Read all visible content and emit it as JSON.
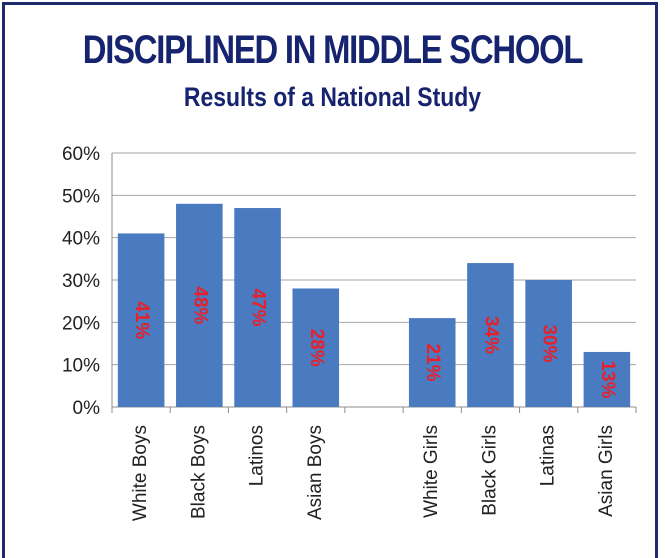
{
  "header": {
    "title": "DISCIPLINED IN MIDDLE SCHOOL",
    "subtitle": "Results of a National Study"
  },
  "colors": {
    "bar": "#4a7ac0",
    "title": "#16236f",
    "data_label": "#e8202a",
    "grid": "#a6a6a6"
  },
  "chart_data": {
    "type": "bar",
    "title": "DISCIPLINED IN MIDDLE SCHOOL",
    "subtitle": "Results of a National Study",
    "categories": [
      "White Boys",
      "Black Boys",
      "Latinos",
      "Asian Boys",
      "",
      "White Girls",
      "Black Girls",
      "Latinas",
      "Asian Girls"
    ],
    "values": [
      41,
      48,
      47,
      28,
      null,
      21,
      34,
      30,
      13
    ],
    "data_labels": [
      "41%",
      "48%",
      "47%",
      "28%",
      "",
      "21%",
      "34%",
      "30%",
      "13%"
    ],
    "yticks": [
      "0%",
      "10%",
      "20%",
      "30%",
      "40%",
      "50%",
      "60%"
    ],
    "ylim": [
      0,
      60
    ],
    "grid": true,
    "xlabel": "",
    "ylabel": ""
  }
}
